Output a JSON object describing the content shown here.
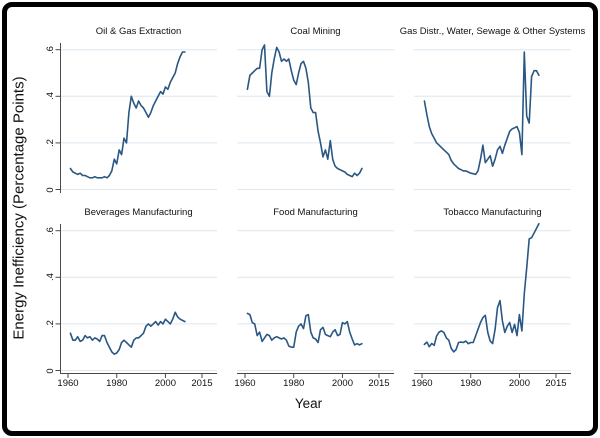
{
  "chart_data": {
    "type": "line",
    "layout": "2x3_small_multiples",
    "xlabel": "Year",
    "ylabel": "Energy Inefficiency (Percentage Points)",
    "x_ticks": [
      1960,
      1980,
      2000,
      2015
    ],
    "x_tick_labels": [
      "1960",
      "1980",
      "2000",
      "2015"
    ],
    "y_ticks": [
      0,
      0.2,
      0.4,
      0.6
    ],
    "y_tick_labels": [
      "0",
      ".2",
      ".4",
      ".6"
    ],
    "xlim": [
      1957,
      2021
    ],
    "ylim": [
      -0.015,
      0.63
    ],
    "grid": true,
    "legend": false,
    "line_color": "#2a5783",
    "grid_color": "#dce7f0",
    "axis_color": "#4a4a4a",
    "x": [
      1961,
      1962,
      1963,
      1964,
      1965,
      1966,
      1967,
      1968,
      1969,
      1970,
      1971,
      1972,
      1973,
      1974,
      1975,
      1976,
      1977,
      1978,
      1979,
      1980,
      1981,
      1982,
      1983,
      1984,
      1985,
      1986,
      1987,
      1988,
      1989,
      1990,
      1991,
      1992,
      1993,
      1994,
      1995,
      1996,
      1997,
      1998,
      1999,
      2000,
      2001,
      2002,
      2003,
      2004,
      2005,
      2006,
      2007,
      2008
    ],
    "series": [
      {
        "name": "Oil & Gas Extraction",
        "values": [
          0.09,
          0.075,
          0.07,
          0.065,
          0.07,
          0.06,
          0.06,
          0.055,
          0.05,
          0.05,
          0.055,
          0.05,
          0.05,
          0.05,
          0.055,
          0.05,
          0.06,
          0.08,
          0.13,
          0.11,
          0.17,
          0.15,
          0.22,
          0.2,
          0.33,
          0.4,
          0.37,
          0.35,
          0.38,
          0.36,
          0.35,
          0.33,
          0.31,
          0.33,
          0.36,
          0.38,
          0.4,
          0.42,
          0.41,
          0.44,
          0.43,
          0.46,
          0.48,
          0.5,
          0.54,
          0.57,
          0.59,
          0.59
        ]
      },
      {
        "name": "Coal Mining",
        "values": [
          0.43,
          0.49,
          0.5,
          0.51,
          0.52,
          0.52,
          0.6,
          0.62,
          0.42,
          0.4,
          0.5,
          0.56,
          0.61,
          0.59,
          0.55,
          0.56,
          0.55,
          0.56,
          0.51,
          0.47,
          0.45,
          0.5,
          0.54,
          0.55,
          0.52,
          0.46,
          0.35,
          0.33,
          0.33,
          0.25,
          0.2,
          0.14,
          0.17,
          0.13,
          0.21,
          0.13,
          0.1,
          0.09,
          0.085,
          0.08,
          0.075,
          0.065,
          0.06,
          0.055,
          0.07,
          0.06,
          0.07,
          0.09
        ]
      },
      {
        "name": "Gas Distr., Water, Sewage & Other Systems",
        "values": [
          0.38,
          0.32,
          0.27,
          0.24,
          0.22,
          0.2,
          0.19,
          0.18,
          0.17,
          0.16,
          0.15,
          0.125,
          0.11,
          0.1,
          0.09,
          0.085,
          0.08,
          0.08,
          0.075,
          0.07,
          0.068,
          0.065,
          0.08,
          0.13,
          0.19,
          0.115,
          0.13,
          0.145,
          0.1,
          0.13,
          0.17,
          0.185,
          0.155,
          0.19,
          0.22,
          0.25,
          0.26,
          0.265,
          0.27,
          0.245,
          0.15,
          0.59,
          0.315,
          0.285,
          0.485,
          0.51,
          0.51,
          0.49
        ]
      },
      {
        "name": "Beverages Manufacturing",
        "values": [
          0.16,
          0.13,
          0.13,
          0.145,
          0.125,
          0.13,
          0.15,
          0.14,
          0.145,
          0.13,
          0.14,
          0.135,
          0.125,
          0.15,
          0.15,
          0.12,
          0.1,
          0.08,
          0.07,
          0.075,
          0.09,
          0.12,
          0.13,
          0.12,
          0.11,
          0.1,
          0.13,
          0.14,
          0.14,
          0.15,
          0.16,
          0.19,
          0.2,
          0.19,
          0.2,
          0.21,
          0.195,
          0.21,
          0.2,
          0.22,
          0.21,
          0.2,
          0.22,
          0.25,
          0.23,
          0.22,
          0.215,
          0.21
        ]
      },
      {
        "name": "Food Manufacturing",
        "values": [
          0.245,
          0.24,
          0.205,
          0.2,
          0.15,
          0.165,
          0.125,
          0.14,
          0.155,
          0.15,
          0.13,
          0.14,
          0.145,
          0.14,
          0.135,
          0.14,
          0.13,
          0.105,
          0.1,
          0.1,
          0.165,
          0.19,
          0.2,
          0.18,
          0.235,
          0.24,
          0.165,
          0.14,
          0.135,
          0.12,
          0.175,
          0.185,
          0.155,
          0.15,
          0.145,
          0.165,
          0.175,
          0.15,
          0.155,
          0.205,
          0.2,
          0.21,
          0.165,
          0.135,
          0.11,
          0.115,
          0.11,
          0.115
        ]
      },
      {
        "name": "Tobacco Manufacturing",
        "values": [
          0.112,
          0.122,
          0.102,
          0.116,
          0.108,
          0.148,
          0.165,
          0.17,
          0.163,
          0.14,
          0.13,
          0.095,
          0.08,
          0.09,
          0.12,
          0.122,
          0.12,
          0.126,
          0.115,
          0.12,
          0.12,
          0.148,
          0.177,
          0.206,
          0.227,
          0.237,
          0.163,
          0.126,
          0.116,
          0.177,
          0.27,
          0.3,
          0.213,
          0.163,
          0.19,
          0.206,
          0.163,
          0.198,
          0.15,
          0.24,
          0.17,
          0.33,
          0.44,
          0.565,
          0.57,
          0.59,
          0.61,
          0.63
        ]
      }
    ]
  }
}
